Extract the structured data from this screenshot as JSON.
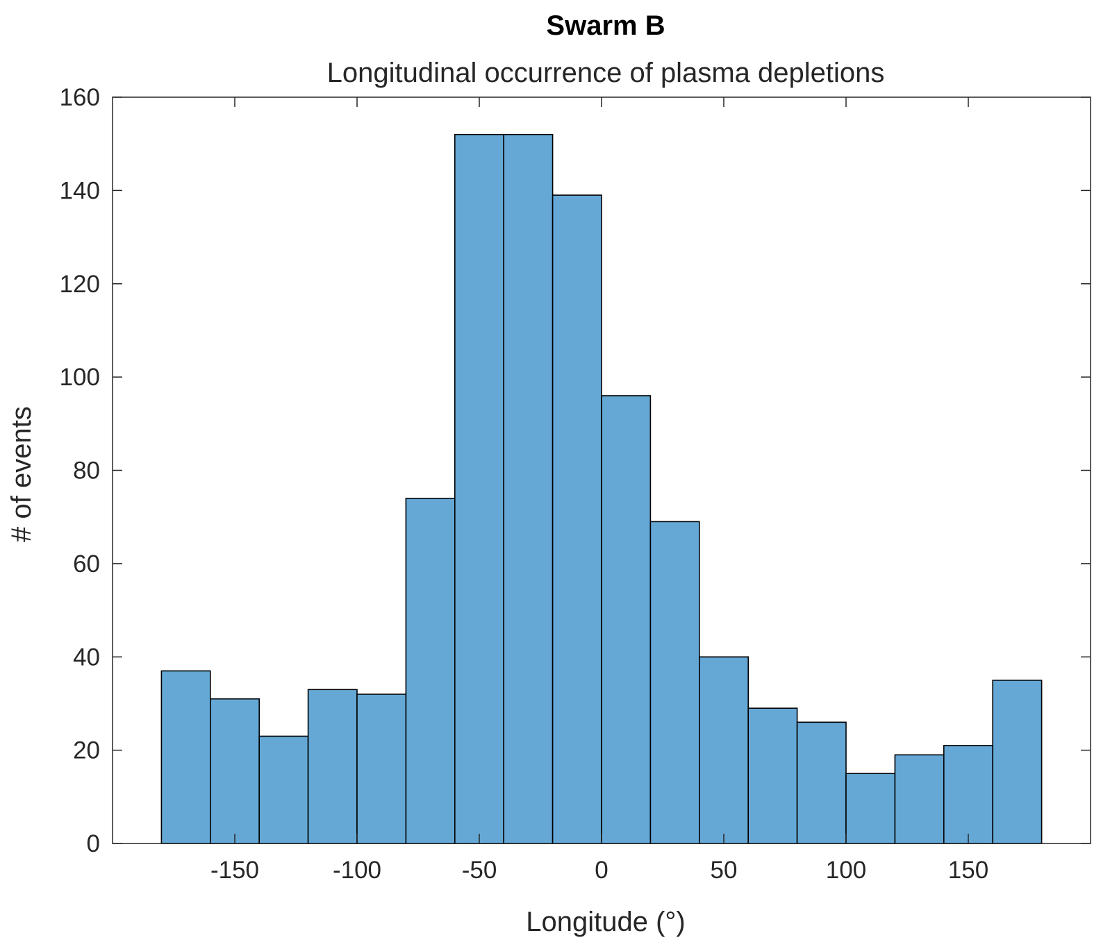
{
  "chart_data": {
    "type": "bar",
    "title": "Swarm B",
    "subtitle": "Longitudinal occurrence of plasma depletions",
    "xlabel": "Longitude (°)",
    "ylabel": "# of events",
    "xlim": [
      -200,
      200
    ],
    "ylim": [
      0,
      160
    ],
    "xticks": [
      -150,
      -100,
      -50,
      0,
      50,
      100,
      150
    ],
    "xtick_labels": [
      "-150",
      "-100",
      "-50",
      "0",
      "50",
      "100",
      "150"
    ],
    "yticks": [
      0,
      20,
      40,
      60,
      80,
      100,
      120,
      140,
      160
    ],
    "ytick_labels": [
      "0",
      "20",
      "40",
      "60",
      "80",
      "100",
      "120",
      "140",
      "160"
    ],
    "bin_edges": [
      -180,
      -160,
      -140,
      -120,
      -100,
      -80,
      -60,
      -40,
      -20,
      0,
      20,
      40,
      60,
      80,
      100,
      120,
      140,
      160,
      180
    ],
    "values": [
      37,
      31,
      23,
      33,
      32,
      74,
      152,
      152,
      139,
      96,
      69,
      40,
      29,
      26,
      15,
      19,
      21,
      35
    ],
    "bar_color": "#65a8d6",
    "edge_color": "#000000",
    "grid": false
  }
}
